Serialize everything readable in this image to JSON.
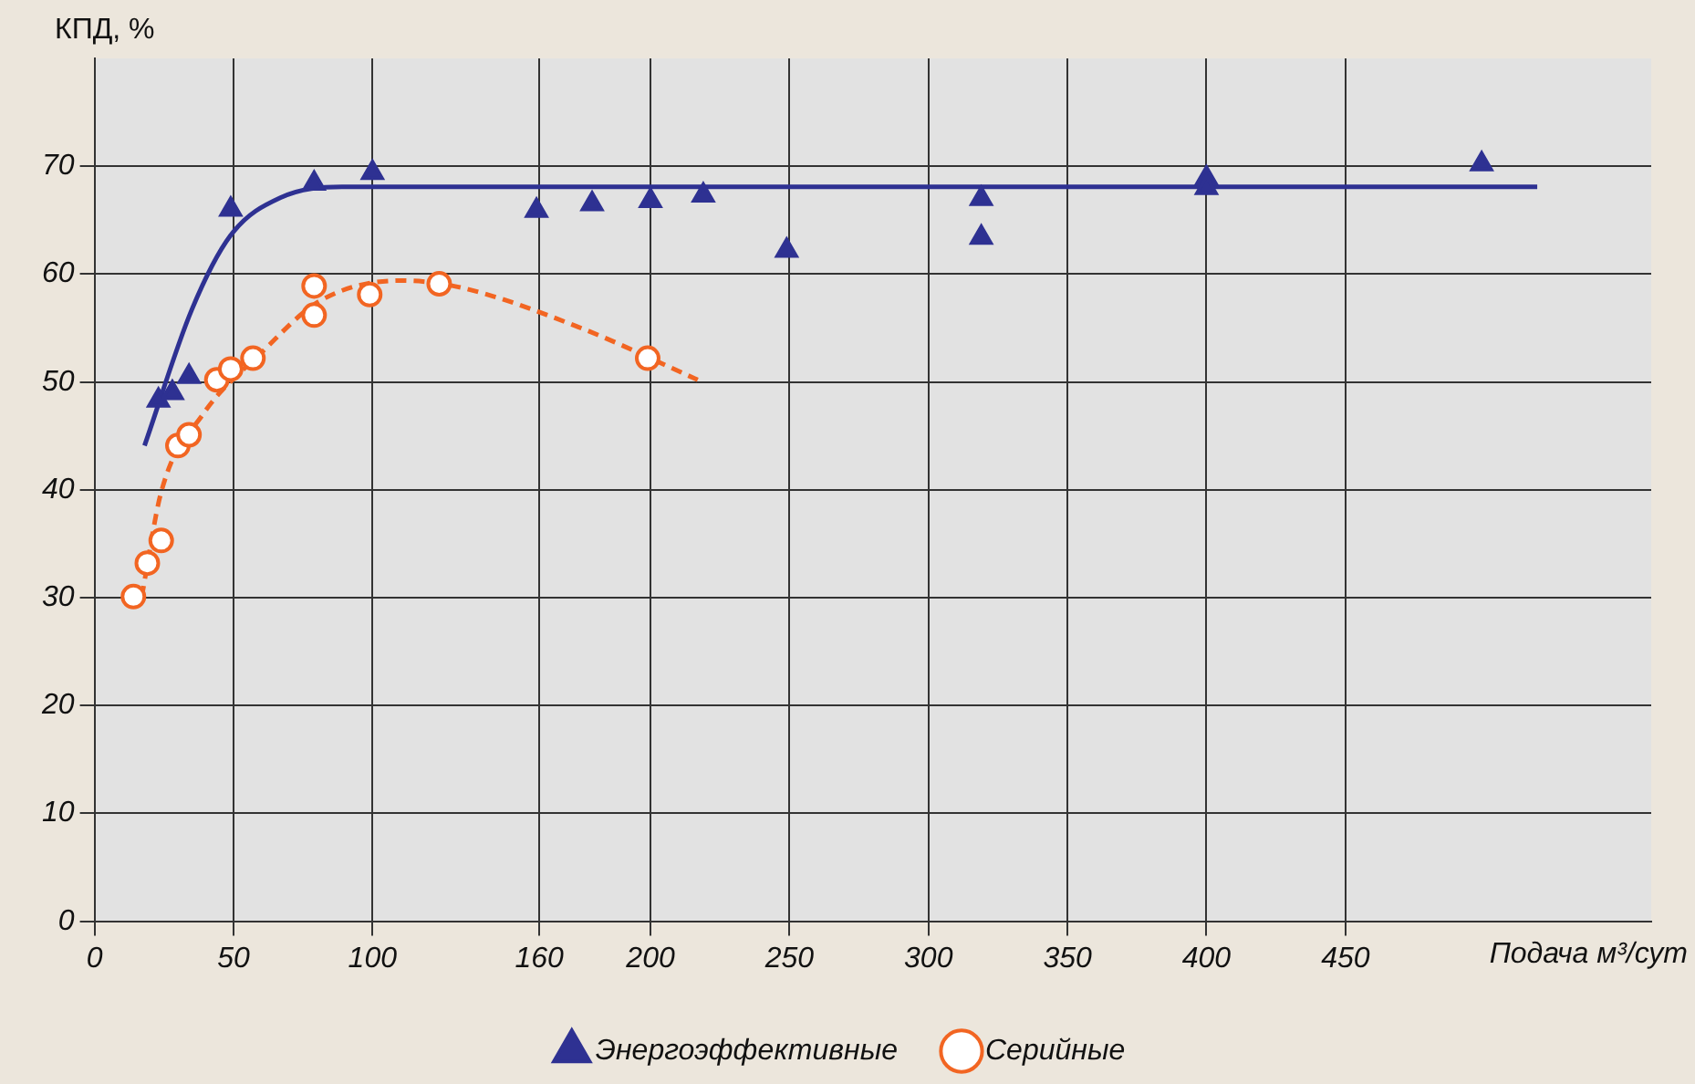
{
  "chart_data": {
    "type": "scatter",
    "ylabel": "КПД, %",
    "xlabel": "Подача м³/сут",
    "xlim": [
      0,
      560
    ],
    "ylim": [
      0,
      80
    ],
    "xticks": [
      0,
      50,
      100,
      160,
      200,
      250,
      300,
      350,
      400,
      450
    ],
    "yticks": [
      0,
      10,
      20,
      30,
      40,
      50,
      60,
      70
    ],
    "grid": true,
    "legend": "bottom",
    "series": [
      {
        "name": "Энергоэффективные",
        "color": "#2e3192",
        "marker": "triangle",
        "x": [
          23,
          28,
          34,
          49,
          79,
          100,
          159,
          179,
          200,
          219,
          249,
          319,
          319,
          400,
          400,
          499
        ],
        "values": [
          48.3,
          49,
          50.5,
          66,
          68.4,
          69.4,
          65.9,
          66.5,
          66.8,
          67.3,
          62.2,
          67,
          63.4,
          68.9,
          68,
          70.2
        ]
      },
      {
        "name": "Серийные",
        "color": "#f26522",
        "marker": "circle",
        "x": [
          14,
          19,
          24,
          30,
          34,
          44,
          49,
          57,
          79,
          79,
          99,
          124,
          199
        ],
        "values": [
          30.1,
          33.2,
          35.3,
          44.1,
          45.1,
          50.2,
          51.2,
          52.2,
          56.2,
          58.9,
          58.1,
          59.1,
          52.2
        ]
      },
      {
        "type": "line",
        "color": "#2e3192",
        "marker": "none",
        "line_style": "solid",
        "x": [
          18,
          35,
          49,
          67,
          89,
          519
        ],
        "values": [
          44.1,
          56.7,
          63.6,
          67.1,
          68.1,
          68.1
        ]
      },
      {
        "type": "line",
        "color": "#f26522",
        "marker": "none",
        "line_style": "dashed",
        "x": [
          17,
          24,
          39,
          60,
          81,
          110,
          131,
          174,
          217
        ],
        "values": [
          30.1,
          39.8,
          47,
          52.7,
          57.5,
          59.4,
          58.8,
          55.1,
          50.2
        ]
      }
    ]
  }
}
